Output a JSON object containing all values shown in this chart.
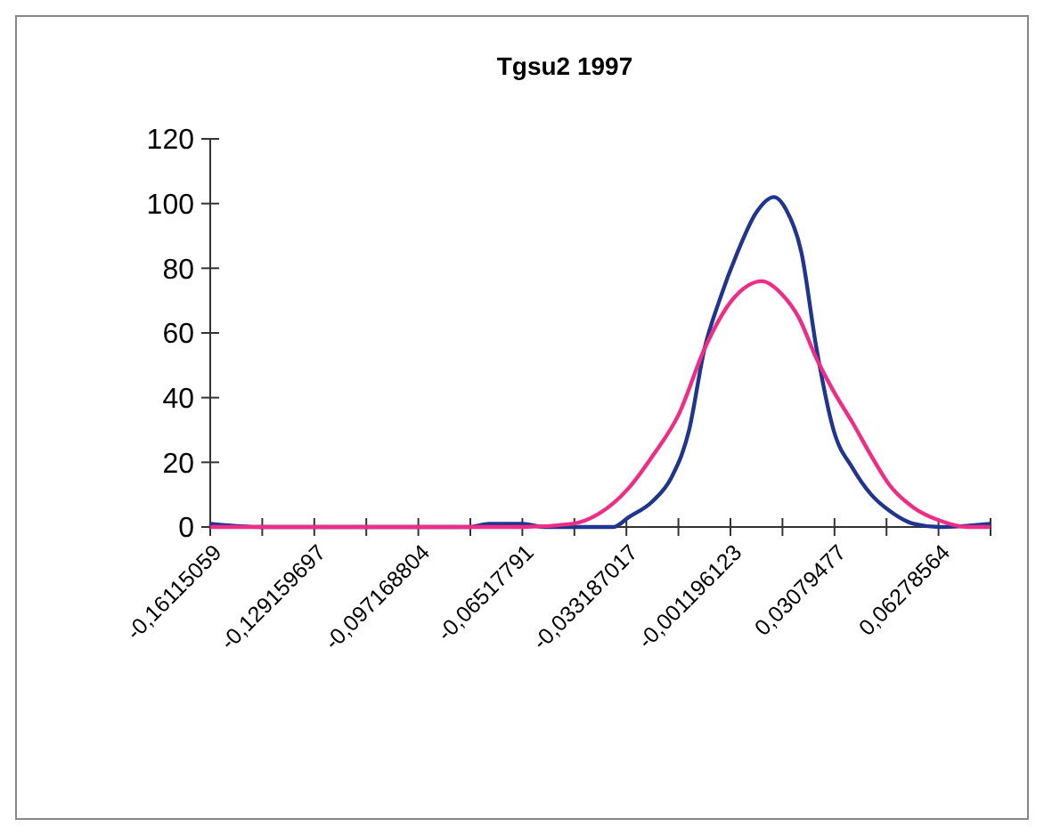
{
  "chart_data": {
    "type": "line",
    "title": "Tgsu2 1997",
    "xlim": [
      -0.16115059,
      0.07878109
    ],
    "xticks": [
      {
        "value": -0.16115059,
        "label": "-0,16115059"
      },
      {
        "value": -0.14515514,
        "label": null
      },
      {
        "value": -0.129159697,
        "label": "-0,129159697"
      },
      {
        "value": -0.11316425,
        "label": null
      },
      {
        "value": -0.097168804,
        "label": "-0,097168804"
      },
      {
        "value": -0.08117336,
        "label": null
      },
      {
        "value": -0.06517791,
        "label": "-0,06517791"
      },
      {
        "value": -0.04918246,
        "label": null
      },
      {
        "value": -0.033187017,
        "label": "-0,033187017"
      },
      {
        "value": -0.01719157,
        "label": null
      },
      {
        "value": -0.001196123,
        "label": "-0,001196123"
      },
      {
        "value": 0.01479933,
        "label": null
      },
      {
        "value": 0.03079477,
        "label": "0,03079477"
      },
      {
        "value": 0.04679022,
        "label": null
      },
      {
        "value": 0.06278564,
        "label": "0,06278564"
      },
      {
        "value": 0.07878109,
        "label": null
      }
    ],
    "ylim": [
      0,
      120
    ],
    "yticks": [
      0,
      20,
      40,
      60,
      80,
      100,
      120
    ],
    "grid": false,
    "marker": "none",
    "line_style": "solid",
    "series": [
      {
        "color": "#1f3590",
        "x": [
          -0.1611,
          -0.1459,
          -0.0814,
          -0.0754,
          -0.0651,
          -0.0586,
          -0.0497,
          -0.0372,
          -0.0325,
          -0.0251,
          -0.0195,
          -0.0139,
          -0.0092,
          -0.0046,
          0.001,
          0.0066,
          0.0122,
          0.016,
          0.0206,
          0.0253,
          0.0305,
          0.0365,
          0.0421,
          0.0477,
          0.0551,
          0.0631,
          0.0787
        ],
        "values": [
          1,
          0,
          0,
          1,
          1,
          0,
          0,
          0,
          3,
          8,
          15,
          30,
          55,
          70,
          85,
          97,
          102,
          98,
          85,
          55,
          30,
          18,
          10,
          5,
          1,
          0,
          1
        ]
      },
      {
        "color": "#f02d86",
        "x": [
          -0.1611,
          -0.0651,
          -0.0497,
          -0.0418,
          -0.0325,
          -0.0251,
          -0.017,
          -0.0092,
          -0.0008,
          0.0085,
          0.0146,
          0.0197,
          0.0253,
          0.0305,
          0.0365,
          0.0421,
          0.0477,
          0.0551,
          0.0631,
          0.0719,
          0.0787
        ],
        "values": [
          0,
          0,
          1,
          4,
          12,
          22,
          35,
          55,
          70,
          76,
          72,
          65,
          52,
          42,
          32,
          22,
          13,
          6,
          2,
          0,
          0
        ]
      }
    ]
  }
}
